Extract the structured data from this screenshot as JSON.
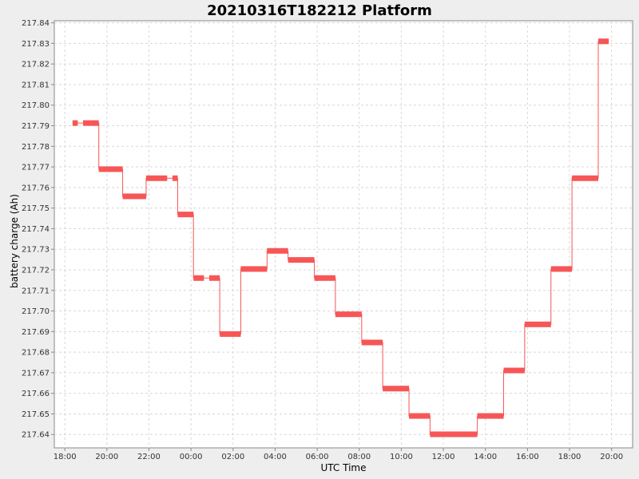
{
  "chart_data": {
    "type": "line",
    "title": "20210316T182212 Platform",
    "xlabel": "UTC Time",
    "ylabel": "battery charge (Ah)",
    "x_ticks": [
      "18:00",
      "20:00",
      "22:00",
      "00:00",
      "02:00",
      "04:00",
      "06:00",
      "08:00",
      "10:00",
      "12:00",
      "14:00",
      "16:00",
      "18:00",
      "20:00"
    ],
    "y_ticks": [
      "217.84",
      "217.83",
      "217.82",
      "217.81",
      "217.80",
      "217.79",
      "217.78",
      "217.77",
      "217.76",
      "217.75",
      "217.74",
      "217.73",
      "217.72",
      "217.71",
      "217.70",
      "217.69",
      "217.68",
      "217.67",
      "217.66",
      "217.65",
      "217.64"
    ],
    "ylim": [
      217.6335,
      217.841
    ],
    "xlim": [
      "2021-03-16T17:30",
      "2021-03-17T21:00"
    ],
    "grid": true,
    "color": "#f75656",
    "segments": [
      {
        "start": "2021-03-16T18:22",
        "end": "2021-03-16T18:37",
        "y": 217.7913
      },
      {
        "start": "2021-03-16T18:52",
        "end": "2021-03-16T19:37",
        "y": 217.7913
      },
      {
        "start": "2021-03-16T19:37",
        "end": "2021-03-16T20:45",
        "y": 217.7689
      },
      {
        "start": "2021-03-16T20:45",
        "end": "2021-03-16T21:52",
        "y": 217.7557
      },
      {
        "start": "2021-03-16T21:52",
        "end": "2021-03-16T22:52",
        "y": 217.7645
      },
      {
        "start": "2021-03-16T23:07",
        "end": "2021-03-16T23:22",
        "y": 217.7645
      },
      {
        "start": "2021-03-16T23:22",
        "end": "2021-03-17T00:07",
        "y": 217.7469
      },
      {
        "start": "2021-03-17T00:07",
        "end": "2021-03-17T00:37",
        "y": 217.716
      },
      {
        "start": "2021-03-17T00:52",
        "end": "2021-03-17T01:22",
        "y": 217.716
      },
      {
        "start": "2021-03-17T01:22",
        "end": "2021-03-17T02:22",
        "y": 217.6888
      },
      {
        "start": "2021-03-17T02:22",
        "end": "2021-03-17T03:37",
        "y": 217.7204
      },
      {
        "start": "2021-03-17T03:37",
        "end": "2021-03-17T04:37",
        "y": 217.7292
      },
      {
        "start": "2021-03-17T04:37",
        "end": "2021-03-17T05:52",
        "y": 217.7248
      },
      {
        "start": "2021-03-17T05:52",
        "end": "2021-03-17T06:52",
        "y": 217.716
      },
      {
        "start": "2021-03-17T06:52",
        "end": "2021-03-17T08:07",
        "y": 217.6984
      },
      {
        "start": "2021-03-17T08:07",
        "end": "2021-03-17T09:07",
        "y": 217.6847
      },
      {
        "start": "2021-03-17T09:07",
        "end": "2021-03-17T10:22",
        "y": 217.6623
      },
      {
        "start": "2021-03-17T10:22",
        "end": "2021-03-17T11:22",
        "y": 217.649
      },
      {
        "start": "2021-03-17T11:22",
        "end": "2021-03-17T13:37",
        "y": 217.6401
      },
      {
        "start": "2021-03-17T13:37",
        "end": "2021-03-17T14:52",
        "y": 217.649
      },
      {
        "start": "2021-03-17T14:52",
        "end": "2021-03-17T15:52",
        "y": 217.6711
      },
      {
        "start": "2021-03-17T15:52",
        "end": "2021-03-17T17:07",
        "y": 217.6935
      },
      {
        "start": "2021-03-17T17:07",
        "end": "2021-03-17T18:07",
        "y": 217.7204
      },
      {
        "start": "2021-03-17T18:07",
        "end": "2021-03-17T19:22",
        "y": 217.7645
      },
      {
        "start": "2021-03-17T19:22",
        "end": "2021-03-17T19:52",
        "y": 217.831
      }
    ]
  }
}
